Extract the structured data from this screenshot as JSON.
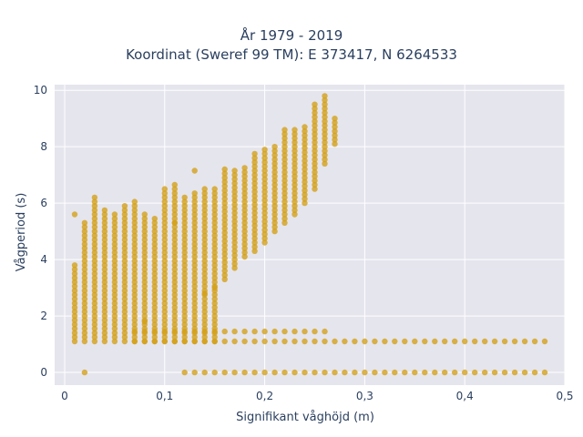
{
  "chart_data": {
    "type": "scatter",
    "title": [
      "År 1979 - 2019",
      "Koordinat (Sweref 99 TM): E 373417, N 6264533"
    ],
    "xlabel": "Signifikant våghöjd (m)",
    "ylabel": "Vågperiod (s)",
    "xlim": [
      -0.01,
      0.5
    ],
    "ylim": [
      -0.45,
      10.2
    ],
    "x_ticks": [
      0,
      0.1,
      0.2,
      0.3,
      0.4,
      0.5
    ],
    "x_tick_labels": [
      "0",
      "0,1",
      "0,2",
      "0,3",
      "0,4",
      "0,5"
    ],
    "y_ticks": [
      0,
      2,
      4,
      6,
      8,
      10
    ],
    "y_tick_labels": [
      "0",
      "2",
      "4",
      "6",
      "8",
      "10"
    ],
    "grid": true,
    "marker_color": "#D4A017",
    "plot_background": "#E5E5EE",
    "series": [
      {
        "columns": [
          {
            "x": 0.01,
            "ymin": 1.1,
            "ymax": 3.8
          },
          {
            "x": 0.01,
            "ymin": 5.6,
            "ymax": 5.6
          },
          {
            "x": 0.02,
            "ymin": 1.1,
            "ymax": 5.3
          },
          {
            "x": 0.03,
            "ymin": 1.1,
            "ymax": 6.3
          },
          {
            "x": 0.04,
            "ymin": 1.1,
            "ymax": 5.8
          },
          {
            "x": 0.05,
            "ymin": 1.1,
            "ymax": 5.7
          },
          {
            "x": 0.06,
            "ymin": 1.1,
            "ymax": 6.0
          },
          {
            "x": 0.07,
            "ymin": 1.1,
            "ymax": 6.1
          },
          {
            "x": 0.08,
            "ymin": 1.1,
            "ymax": 5.6
          },
          {
            "x": 0.09,
            "ymin": 1.1,
            "ymax": 5.5
          },
          {
            "x": 0.1,
            "ymin": 1.1,
            "ymax": 6.4
          },
          {
            "x": 0.11,
            "ymin": 1.1,
            "ymax": 6.7
          },
          {
            "x": 0.12,
            "ymin": 1.1,
            "ymax": 6.2
          },
          {
            "x": 0.13,
            "ymin": 1.1,
            "ymax": 6.4
          },
          {
            "x": 0.14,
            "ymin": 1.1,
            "ymax": 6.6
          },
          {
            "x": 0.15,
            "ymin": 1.1,
            "ymax": 6.6
          },
          {
            "x": 0.16,
            "ymin": 3.3,
            "ymax": 7.3
          },
          {
            "x": 0.17,
            "ymin": 3.7,
            "ymax": 7.2
          },
          {
            "x": 0.18,
            "ymin": 4.1,
            "ymax": 7.3
          },
          {
            "x": 0.19,
            "ymin": 4.3,
            "ymax": 7.8
          },
          {
            "x": 0.2,
            "ymin": 4.6,
            "ymax": 8.0
          },
          {
            "x": 0.21,
            "ymin": 5.0,
            "ymax": 8.1
          },
          {
            "x": 0.22,
            "ymin": 5.3,
            "ymax": 8.6
          },
          {
            "x": 0.23,
            "ymin": 5.6,
            "ymax": 8.6
          },
          {
            "x": 0.24,
            "ymin": 6.0,
            "ymax": 8.7
          },
          {
            "x": 0.25,
            "ymin": 6.5,
            "ymax": 9.5
          },
          {
            "x": 0.26,
            "ymin": 7.4,
            "ymax": 9.8
          },
          {
            "x": 0.27,
            "ymin": 8.1,
            "ymax": 9.1
          }
        ],
        "bands": [
          {
            "y": 1.45,
            "x_from": 0.07,
            "x_to": 0.26
          },
          {
            "y": 1.1,
            "x_from": 0.07,
            "x_to": 0.48
          },
          {
            "y": 0.0,
            "x_from": 0.12,
            "x_to": 0.48
          }
        ],
        "points": [
          {
            "x": 0.02,
            "y": 0.0
          },
          {
            "x": 0.13,
            "y": 7.15
          },
          {
            "x": 0.1,
            "y": 6.5
          },
          {
            "x": 0.11,
            "y": 5.3
          },
          {
            "x": 0.08,
            "y": 1.8
          },
          {
            "x": 0.15,
            "y": 3.0
          },
          {
            "x": 0.14,
            "y": 2.8
          }
        ]
      }
    ]
  }
}
